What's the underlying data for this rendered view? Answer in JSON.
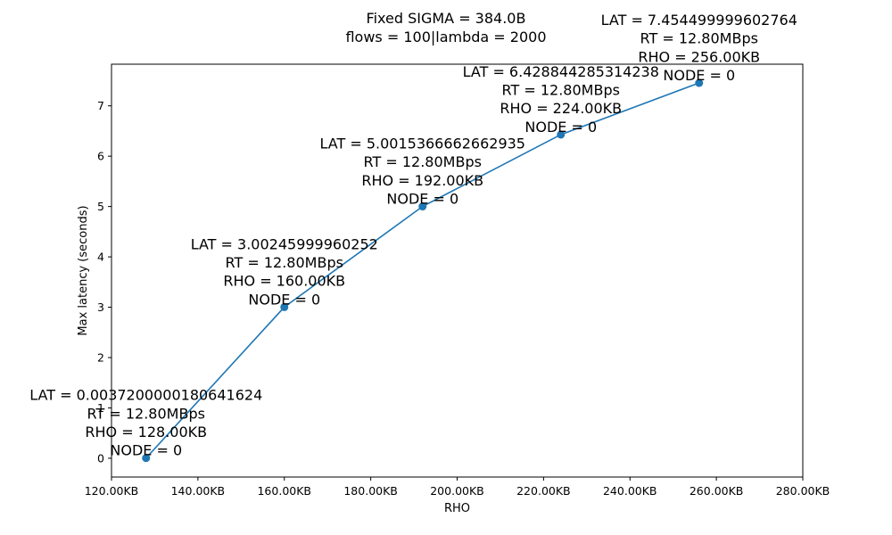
{
  "chart_data": {
    "type": "line",
    "title": [
      "Fixed SIGMA = 384.0B",
      "flows = 100|lambda = 2000"
    ],
    "xlabel": "RHO",
    "ylabel": "Max latency (seconds)",
    "xlim": [
      120,
      280
    ],
    "ylim": [
      -0.373,
      7.827
    ],
    "x_ticks": [
      {
        "value": 120,
        "label": "120.00KB"
      },
      {
        "value": 140,
        "label": "140.00KB"
      },
      {
        "value": 160,
        "label": "160.00KB"
      },
      {
        "value": 180,
        "label": "180.00KB"
      },
      {
        "value": 200,
        "label": "200.00KB"
      },
      {
        "value": 220,
        "label": "220.00KB"
      },
      {
        "value": 240,
        "label": "240.00KB"
      },
      {
        "value": 260,
        "label": "260.00KB"
      },
      {
        "value": 280,
        "label": "280.00KB"
      }
    ],
    "y_ticks": [
      {
        "value": 0,
        "label": "0"
      },
      {
        "value": 1,
        "label": "1"
      },
      {
        "value": 2,
        "label": "2"
      },
      {
        "value": 3,
        "label": "3"
      },
      {
        "value": 4,
        "label": "4"
      },
      {
        "value": 5,
        "label": "5"
      },
      {
        "value": 6,
        "label": "6"
      },
      {
        "value": 7,
        "label": "7"
      }
    ],
    "color": "#1f77b4",
    "grid": false,
    "legend": "none",
    "points": [
      {
        "x": 128,
        "y": 0.0037200000180641624,
        "label": [
          "LAT = 0.0037200000180641624",
          "RT = 12.80MBps",
          "RHO = 128.00KB",
          "NODE = 0"
        ]
      },
      {
        "x": 160,
        "y": 3.00245999960252,
        "label": [
          "LAT = 3.00245999960252",
          "RT = 12.80MBps",
          "RHO = 160.00KB",
          "NODE = 0"
        ]
      },
      {
        "x": 192,
        "y": 5.0015366662662935,
        "label": [
          "LAT = 5.0015366662662935",
          "RT = 12.80MBps",
          "RHO = 192.00KB",
          "NODE = 0"
        ]
      },
      {
        "x": 224,
        "y": 6.428844285314238,
        "label": [
          "LAT = 6.428844285314238",
          "RT = 12.80MBps",
          "RHO = 224.00KB",
          "NODE = 0"
        ]
      },
      {
        "x": 256,
        "y": 7.454499999602764,
        "label": [
          "LAT = 7.454499999602764",
          "RT = 12.80MBps",
          "RHO = 256.00KB",
          "NODE = 0"
        ]
      }
    ]
  }
}
